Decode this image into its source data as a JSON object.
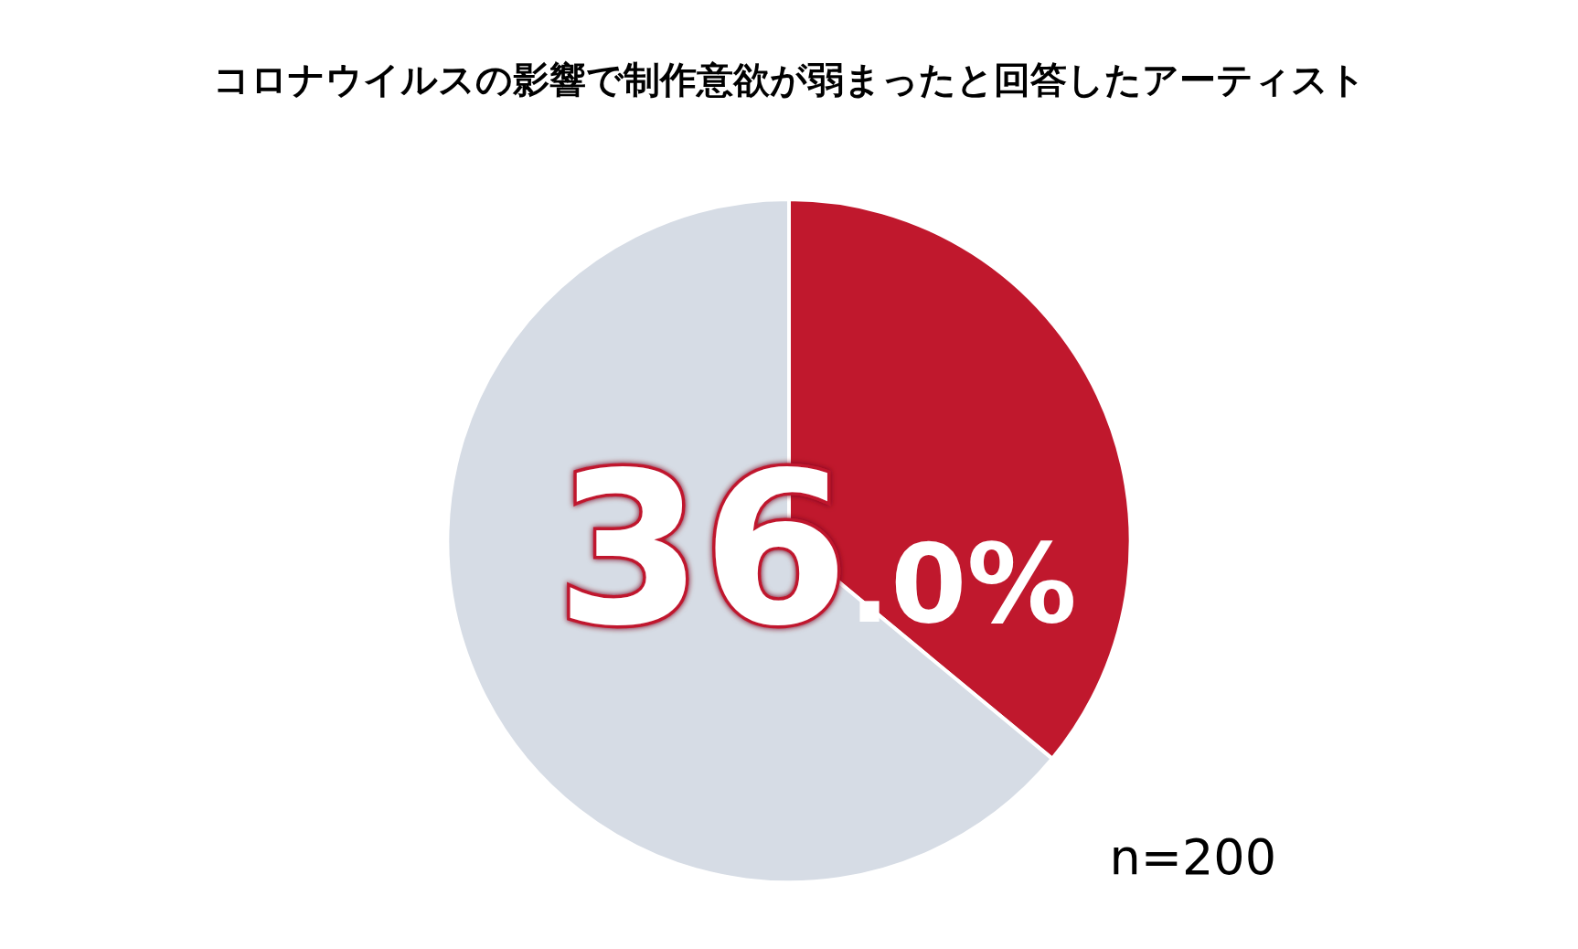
{
  "chart_data": {
    "type": "pie",
    "title": "コロナウイルスの影響で制作意欲が弱まったと回答したアーティスト",
    "categories": [
      null,
      null
    ],
    "values": [
      36,
      64
    ],
    "colors": [
      "#c0182d",
      "#d6dce5"
    ],
    "value_labels": [
      "36.0%",
      null
    ],
    "annotations": [
      "n=200"
    ]
  }
}
